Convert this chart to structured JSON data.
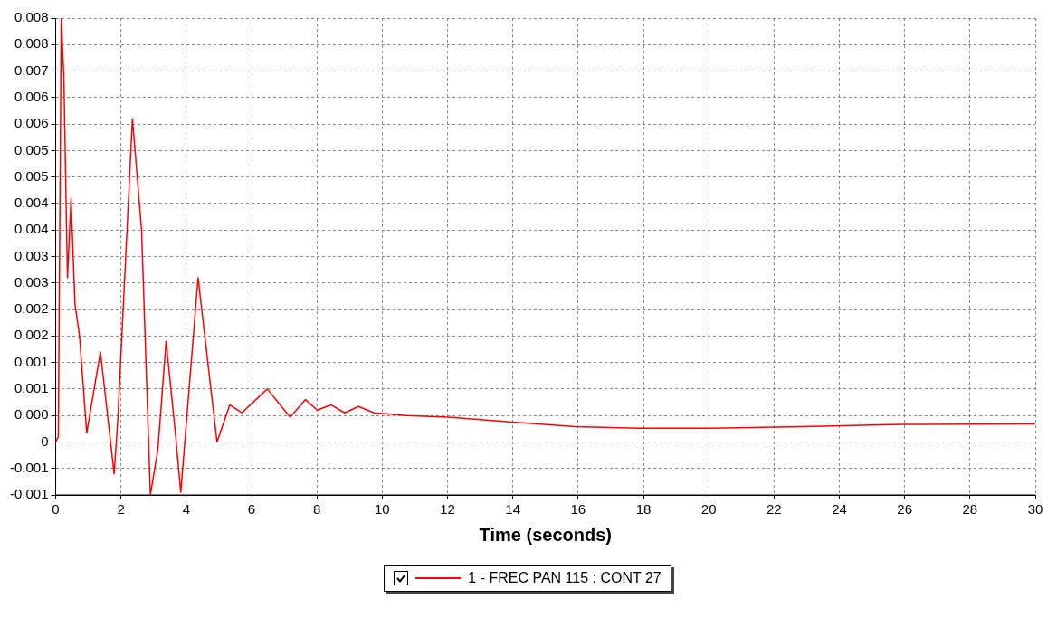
{
  "chart_data": {
    "type": "line",
    "xlabel": "Time (seconds)",
    "x": [
      0,
      0.08,
      0.17,
      0.25,
      0.36,
      0.47,
      0.59,
      0.73,
      0.95,
      1.37,
      1.79,
      1.9,
      2.35,
      2.63,
      2.9,
      3.13,
      3.38,
      3.66,
      3.83,
      4.36,
      4.94,
      5.33,
      5.7,
      6.48,
      7.18,
      7.65,
      8.01,
      8.43,
      8.85,
      9.27,
      9.75,
      10.73,
      12,
      13.9,
      15.9,
      17.85,
      20.08,
      22.9,
      25.9,
      30
    ],
    "series": [
      {
        "name": "1 - FREC PAN 115 : CONT 27",
        "color": "#ff0000",
        "values": [
          0,
          0.0001,
          0.008,
          0.0069,
          0.0031,
          0.0046,
          0.0026,
          0.002,
          0.00017,
          0.0017,
          -0.0006,
          0.0004,
          0.0061,
          0.004,
          -0.001,
          -0.00014,
          0.0019,
          0.0002,
          -0.00095,
          0.0031,
          0,
          0.0007,
          0.00055,
          0.001,
          0.00047,
          0.0008,
          0.0006,
          0.0007,
          0.00055,
          0.00067,
          0.00055,
          0.0005,
          0.00047,
          0.00038,
          0.00029,
          0.00026,
          0.00026,
          0.00029,
          0.00033,
          0.00034
        ]
      }
    ],
    "xlim": [
      0,
      30
    ],
    "xticks": [
      0,
      2,
      4,
      6,
      8,
      10,
      12,
      14,
      16,
      18,
      20,
      22,
      24,
      26,
      28,
      30
    ],
    "ylim": [
      -0.001,
      0.008
    ],
    "yticks": [
      {
        "value": -0.001,
        "label": "-0.001"
      },
      {
        "value": -0.0005,
        "label": "-0.001"
      },
      {
        "value": 0,
        "label": "0"
      },
      {
        "value": 0.0005,
        "label": "0.000"
      },
      {
        "value": 0.001,
        "label": "0.001"
      },
      {
        "value": 0.0015,
        "label": "0.001"
      },
      {
        "value": 0.002,
        "label": "0.002"
      },
      {
        "value": 0.0025,
        "label": "0.002"
      },
      {
        "value": 0.003,
        "label": "0.003"
      },
      {
        "value": 0.0035,
        "label": "0.003"
      },
      {
        "value": 0.004,
        "label": "0.004"
      },
      {
        "value": 0.0045,
        "label": "0.004"
      },
      {
        "value": 0.005,
        "label": "0.005"
      },
      {
        "value": 0.0055,
        "label": "0.005"
      },
      {
        "value": 0.006,
        "label": "0.006"
      },
      {
        "value": 0.0065,
        "label": "0.006"
      },
      {
        "value": 0.007,
        "label": "0.007"
      },
      {
        "value": 0.0075,
        "label": "0.008"
      },
      {
        "value": 0.008,
        "label": "0.008"
      }
    ],
    "grid": true,
    "legend": "bottom",
    "marker": "none",
    "line_style": "solid"
  }
}
